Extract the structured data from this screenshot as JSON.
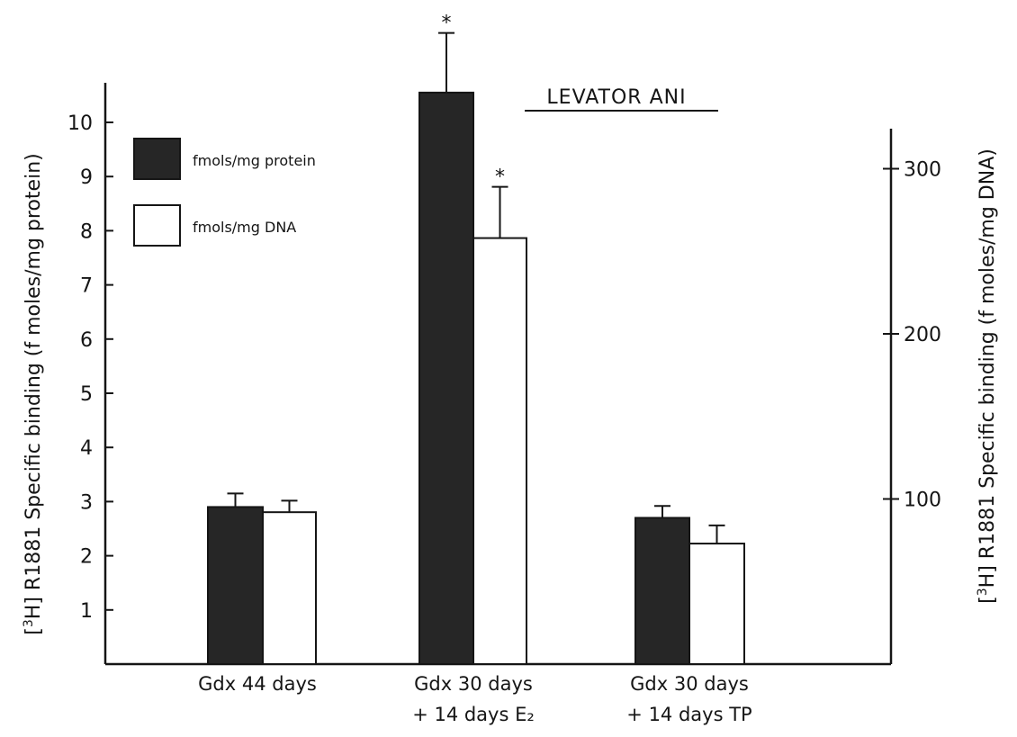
{
  "chart_data": {
    "type": "bar",
    "title": "LEVATOR ANI",
    "categories": [
      [
        "Gdx 44 days",
        ""
      ],
      [
        "Gdx 30 days",
        "+ 14 days E₂"
      ],
      [
        "Gdx 30 days",
        "+ 14 days TP"
      ]
    ],
    "series": [
      {
        "name": "fmols/mg protein",
        "axis": "left",
        "fill": "#262626",
        "values": [
          2.9,
          10.55,
          2.7
        ],
        "error": [
          0.25,
          1.1,
          0.22
        ],
        "significant": [
          false,
          true,
          false
        ]
      },
      {
        "name": "fmols/mg DNA",
        "axis": "right",
        "fill": "#ffffff",
        "values": [
          92,
          258,
          73
        ],
        "error": [
          7,
          31,
          11
        ],
        "significant": [
          false,
          true,
          false
        ]
      }
    ],
    "significance_marker": "*",
    "left_axis": {
      "label": "[3H] R1881 Specific binding (f moles/mg protein)",
      "label_sup": "3",
      "label_elem": "H",
      "label_rest": "R1881 Specific binding (f moles/mg protein)",
      "ticks": [
        1,
        2,
        3,
        4,
        5,
        6,
        7,
        8,
        9,
        10
      ],
      "ylim": [
        0,
        10.6
      ]
    },
    "right_axis": {
      "label": "[3H] R1881 Specific binding (f moles/mg DNA)",
      "label_sup": "3",
      "label_elem": "H",
      "label_rest": "R1881 Specific binding (f moles/mg DNA)",
      "ticks": [
        100,
        200,
        300
      ],
      "ylim": [
        0,
        323
      ]
    },
    "legend_position": "top-left",
    "grid": false
  }
}
